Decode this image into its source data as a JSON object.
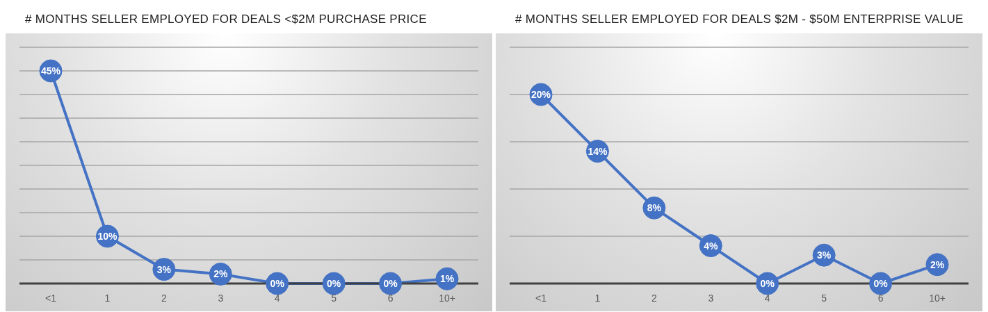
{
  "chart_data": [
    {
      "type": "line",
      "title": "# MONTHS SELLER EMPLOYED FOR DEALS <$2M PURCHASE PRICE",
      "categories": [
        "<1",
        "1",
        "2",
        "3",
        "4",
        "5",
        "6",
        "10+"
      ],
      "series": [
        {
          "color": "#4472c4",
          "values": [
            45,
            10,
            3,
            2,
            0,
            0,
            0,
            1
          ],
          "value_labels": [
            "45%",
            "10%",
            "3%",
            "2%",
            "0%",
            "0%",
            "0%",
            "1%"
          ]
        }
      ],
      "ylim": [
        0,
        50
      ],
      "yticks": [
        {
          "value": 0,
          "label": null
        },
        {
          "value": 5,
          "label": null
        },
        {
          "value": 10,
          "label": null
        },
        {
          "value": 15,
          "label": null
        },
        {
          "value": 20,
          "label": null
        },
        {
          "value": 25,
          "label": null
        },
        {
          "value": 30,
          "label": null
        },
        {
          "value": 35,
          "label": null
        },
        {
          "value": 40,
          "label": null
        },
        {
          "value": 45,
          "label": null
        },
        {
          "value": 50,
          "label": null
        }
      ],
      "grid": "y",
      "tick_labels": "x",
      "marker": "circle",
      "legend": false
    },
    {
      "type": "line",
      "title": "# MONTHS SELLER EMPLOYED FOR DEALS $2M - $50M ENTERPRISE VALUE",
      "categories": [
        "<1",
        "1",
        "2",
        "3",
        "4",
        "5",
        "6",
        "10+"
      ],
      "series": [
        {
          "color": "#4472c4",
          "values": [
            20,
            14,
            8,
            4,
            0,
            3,
            0,
            2
          ],
          "value_labels": [
            "20%",
            "14%",
            "8%",
            "4%",
            "0%",
            "3%",
            "0%",
            "2%"
          ]
        }
      ],
      "ylim": [
        0,
        25
      ],
      "yticks": [
        {
          "value": 0,
          "label": null
        },
        {
          "value": 5,
          "label": null
        },
        {
          "value": 10,
          "label": null
        },
        {
          "value": 15,
          "label": null
        },
        {
          "value": 20,
          "label": null
        },
        {
          "value": 25,
          "label": null
        }
      ],
      "grid": "y",
      "tick_labels": "x",
      "marker": "circle",
      "legend": false
    }
  ]
}
